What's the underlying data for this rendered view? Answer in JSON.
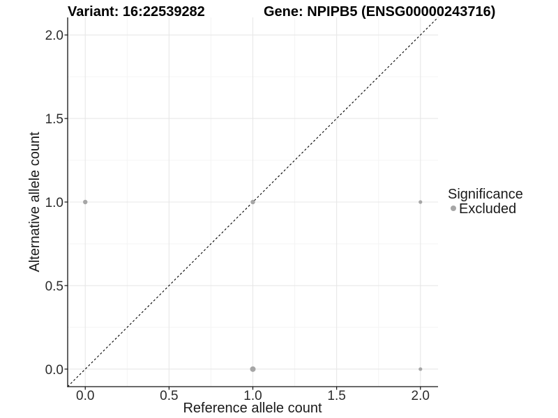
{
  "chart_data": {
    "type": "scatter",
    "titles": {
      "left": "Variant: 16:22539282",
      "right": "Gene: NPIPB5 (ENSG00000243716)"
    },
    "xlabel": "Reference allele count",
    "ylabel": "Alternative allele count",
    "xlim": [
      -0.105,
      2.105
    ],
    "ylim": [
      -0.105,
      2.105
    ],
    "xticks": {
      "values": [
        0,
        0.5,
        1,
        1.5,
        2
      ],
      "labels": [
        "0.0",
        "0.5",
        "1.0",
        "1.5",
        "2.0"
      ]
    },
    "yticks": {
      "values": [
        0,
        0.5,
        1,
        1.5,
        2
      ],
      "labels": [
        "0.0",
        "0.5",
        "1.0",
        "1.5",
        "2.0"
      ]
    },
    "minor_gridlines": [
      0.25,
      0.75,
      1.25,
      1.75
    ],
    "grid": true,
    "identity_line": {
      "style": "dashed",
      "from": [
        -0.105,
        -0.105
      ],
      "to": [
        2.105,
        2.105
      ],
      "color": "#000000",
      "dash": "3,3"
    },
    "points": [
      {
        "x": 0,
        "y": 1,
        "r": 3.2
      },
      {
        "x": 1,
        "y": 1,
        "r": 3.2
      },
      {
        "x": 2,
        "y": 1,
        "r": 2.6
      },
      {
        "x": 1,
        "y": 0,
        "r": 4.0
      },
      {
        "x": 2,
        "y": 0,
        "r": 2.6
      }
    ],
    "colors": {
      "point": "#a6a6a6",
      "major_grid": "#e7e7e7",
      "minor_grid": "#f4f4f4",
      "axis_line": "#111111",
      "tick_mark": "#111111"
    },
    "legend": {
      "position": "right",
      "title": "Significance",
      "items": [
        {
          "label": "Excluded",
          "color": "#a6a6a6"
        }
      ]
    }
  }
}
